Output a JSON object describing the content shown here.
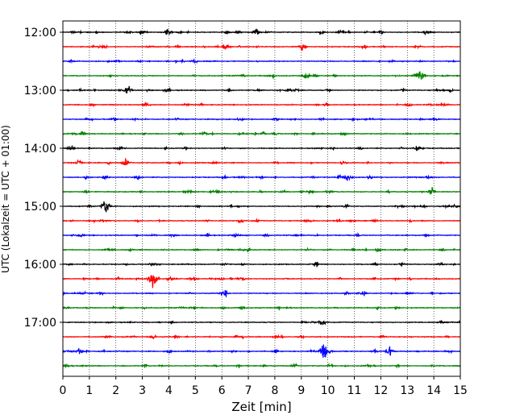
{
  "chart_data": {
    "type": "line",
    "title": "",
    "xlabel": "Zeit  [min]",
    "ylabel": "UTC (Lokalzeit = UTC + 01:00)",
    "xlim": [
      0,
      15
    ],
    "x_ticks": [
      "0",
      "1",
      "2",
      "3",
      "4",
      "5",
      "6",
      "7",
      "8",
      "9",
      "10",
      "11",
      "12",
      "13",
      "14",
      "15"
    ],
    "y_ticks": [
      {
        "label": "12:00",
        "row": 0
      },
      {
        "label": "13:00",
        "row": 4
      },
      {
        "label": "14:00",
        "row": 8
      },
      {
        "label": "15:00",
        "row": 12
      },
      {
        "label": "16:00",
        "row": 16
      },
      {
        "label": "17:00",
        "row": 20
      }
    ],
    "grid": "vertical dotted",
    "legend": "none",
    "trace_colors": [
      "#000000",
      "#ff0000",
      "#0000ff",
      "#008000"
    ],
    "trace_count": 24,
    "trace_interval_minutes": 15,
    "events": [
      {
        "row": 0,
        "minute": 3.95,
        "amplitude": 1.0
      },
      {
        "row": 0,
        "minute": 7.3,
        "amplitude": 0.8
      },
      {
        "row": 1,
        "minute": 9.05,
        "amplitude": 0.9
      },
      {
        "row": 3,
        "minute": 9.2,
        "amplitude": 0.8
      },
      {
        "row": 3,
        "minute": 13.5,
        "amplitude": 1.1
      },
      {
        "row": 4,
        "minute": 2.45,
        "amplitude": 1.0
      },
      {
        "row": 9,
        "minute": 2.35,
        "amplitude": 0.8
      },
      {
        "row": 10,
        "minute": 10.75,
        "amplitude": 1.0
      },
      {
        "row": 11,
        "minute": 13.9,
        "amplitude": 1.1
      },
      {
        "row": 12,
        "minute": 1.6,
        "amplitude": 1.6
      },
      {
        "row": 17,
        "minute": 3.4,
        "amplitude": 1.7
      },
      {
        "row": 18,
        "minute": 6.1,
        "amplitude": 0.8
      },
      {
        "row": 22,
        "minute": 9.9,
        "amplitude": 2.0
      },
      {
        "row": 22,
        "minute": 12.3,
        "amplitude": 0.9
      }
    ]
  }
}
